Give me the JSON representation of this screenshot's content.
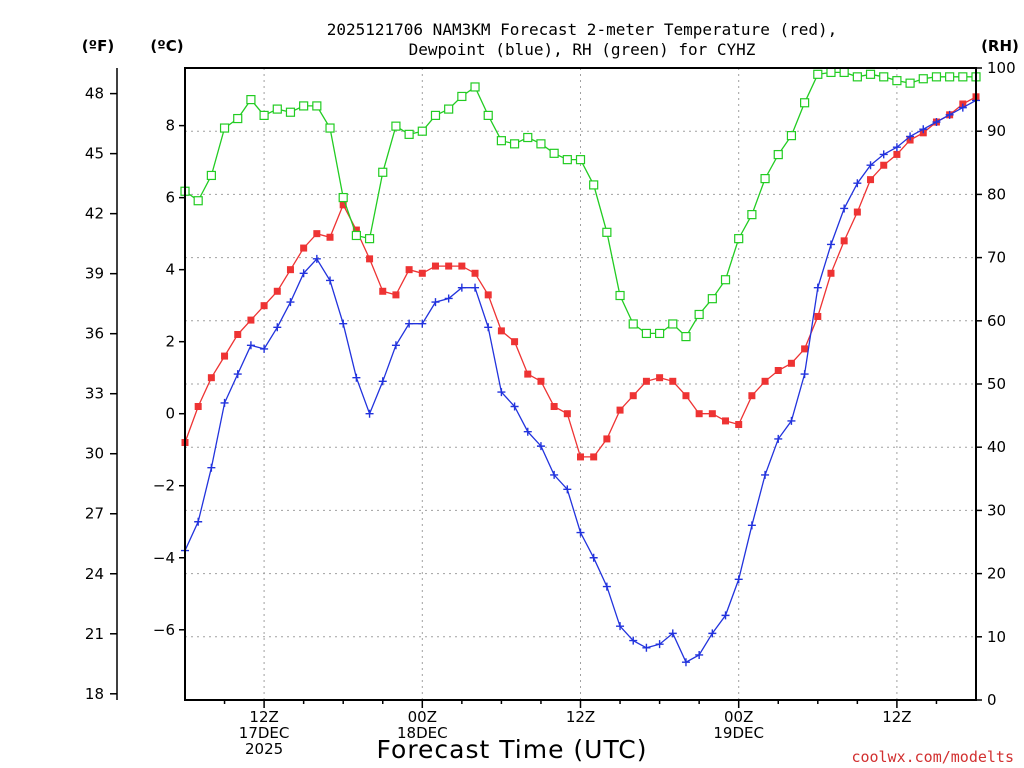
{
  "chart_data": {
    "type": "line",
    "title_line1": "2025121706 NAM3KM Forecast 2-meter Temperature (red),",
    "title_line2": "Dewpoint (blue), RH (green) for CYHZ",
    "xlabel": "Forecast Time (UTC)",
    "left_outer_unit": "(ºF)",
    "left_inner_unit": "(ºC)",
    "right_unit": "(RH)",
    "watermark": "coolwx.com/modelts",
    "x_range_hours": [
      0,
      60
    ],
    "celsius_range": [
      -7.95,
      9.6
    ],
    "rh_range": [
      0,
      100
    ],
    "fahrenheit_ticks": [
      "18",
      "21",
      "24",
      "27",
      "30",
      "33",
      "36",
      "39",
      "42",
      "45",
      "48"
    ],
    "celsius_ticks": [
      "-6",
      "-4",
      "-2",
      "0",
      "2",
      "4",
      "6",
      "8"
    ],
    "rh_ticks": [
      "0",
      "10",
      "20",
      "30",
      "40",
      "50",
      "60",
      "70",
      "80",
      "90",
      "100"
    ],
    "x_tick_hours": [
      6,
      18,
      30,
      42,
      54
    ],
    "x_tick_labels": [
      {
        "hour": 6,
        "lines": [
          "12Z",
          "17DEC",
          "2025"
        ]
      },
      {
        "hour": 18,
        "lines": [
          "00Z",
          "18DEC"
        ]
      },
      {
        "hour": 30,
        "lines": [
          "12Z"
        ]
      },
      {
        "hour": 42,
        "lines": [
          "00Z",
          "19DEC"
        ]
      },
      {
        "hour": 54,
        "lines": [
          "12Z"
        ]
      }
    ],
    "hours": [
      0,
      1,
      2,
      3,
      4,
      5,
      6,
      7,
      8,
      9,
      10,
      11,
      12,
      13,
      14,
      15,
      16,
      17,
      18,
      19,
      20,
      21,
      22,
      23,
      24,
      25,
      26,
      27,
      28,
      29,
      30,
      31,
      32,
      33,
      34,
      35,
      36,
      37,
      38,
      39,
      40,
      41,
      42,
      43,
      44,
      45,
      46,
      47,
      48,
      49,
      50,
      51,
      52,
      53,
      54,
      55,
      56,
      57,
      58,
      59,
      60
    ],
    "series": [
      {
        "name": "Temperature",
        "unit": "C",
        "color": "#ee3333",
        "marker": "filled-square",
        "values": [
          -0.8,
          0.2,
          1.0,
          1.6,
          2.2,
          2.6,
          3.0,
          3.4,
          4.0,
          4.6,
          5.0,
          4.9,
          5.8,
          5.1,
          4.3,
          3.4,
          3.3,
          4.0,
          3.9,
          4.1,
          4.1,
          4.1,
          3.9,
          3.3,
          2.3,
          2.0,
          1.1,
          0.9,
          0.2,
          0.0,
          -1.2,
          -1.2,
          -0.7,
          0.1,
          0.5,
          0.9,
          1.0,
          0.9,
          0.5,
          0.0,
          0.0,
          -0.2,
          -0.3,
          0.5,
          0.9,
          1.2,
          1.4,
          1.8,
          2.7,
          3.9,
          4.8,
          5.6,
          6.5,
          6.9,
          7.2,
          7.6,
          7.8,
          8.1,
          8.3,
          8.6,
          8.8
        ]
      },
      {
        "name": "Dewpoint",
        "unit": "C",
        "color": "#2233dd",
        "marker": "plus",
        "values": [
          -3.8,
          -3.0,
          -1.5,
          0.3,
          1.1,
          1.9,
          1.8,
          2.4,
          3.1,
          3.9,
          4.3,
          3.7,
          2.5,
          1.0,
          0.0,
          0.9,
          1.9,
          2.5,
          2.5,
          3.1,
          3.2,
          3.5,
          3.5,
          2.4,
          0.6,
          0.2,
          -0.5,
          -0.9,
          -1.7,
          -2.1,
          -3.3,
          -4.0,
          -4.8,
          -5.9,
          -6.3,
          -6.5,
          -6.4,
          -6.1,
          -6.9,
          -6.7,
          -6.1,
          -5.6,
          -4.6,
          -3.1,
          -1.7,
          -0.7,
          -0.2,
          1.1,
          3.5,
          4.7,
          5.7,
          6.4,
          6.9,
          7.2,
          7.4,
          7.7,
          7.9,
          8.1,
          8.3,
          8.5,
          8.7
        ]
      },
      {
        "name": "RH",
        "unit": "%",
        "color": "#22cc22",
        "marker": "open-square",
        "values": [
          80.5,
          79.0,
          83.0,
          90.5,
          92.0,
          95.0,
          92.5,
          93.5,
          93.0,
          94.0,
          94.0,
          90.5,
          79.5,
          73.5,
          73.0,
          83.5,
          90.8,
          89.5,
          90.0,
          92.5,
          93.5,
          95.5,
          97.0,
          92.5,
          88.5,
          88.0,
          89.0,
          88.0,
          86.5,
          85.5,
          85.5,
          81.5,
          74.0,
          64.0,
          59.5,
          58.0,
          58.0,
          59.5,
          57.5,
          61.0,
          63.5,
          66.5,
          73.0,
          76.8,
          82.5,
          86.3,
          89.3,
          94.5,
          99.0,
          99.3,
          99.3,
          98.6,
          99.0,
          98.6,
          98.0,
          97.6,
          98.3,
          98.6,
          98.6,
          98.6,
          98.6
        ]
      }
    ]
  }
}
